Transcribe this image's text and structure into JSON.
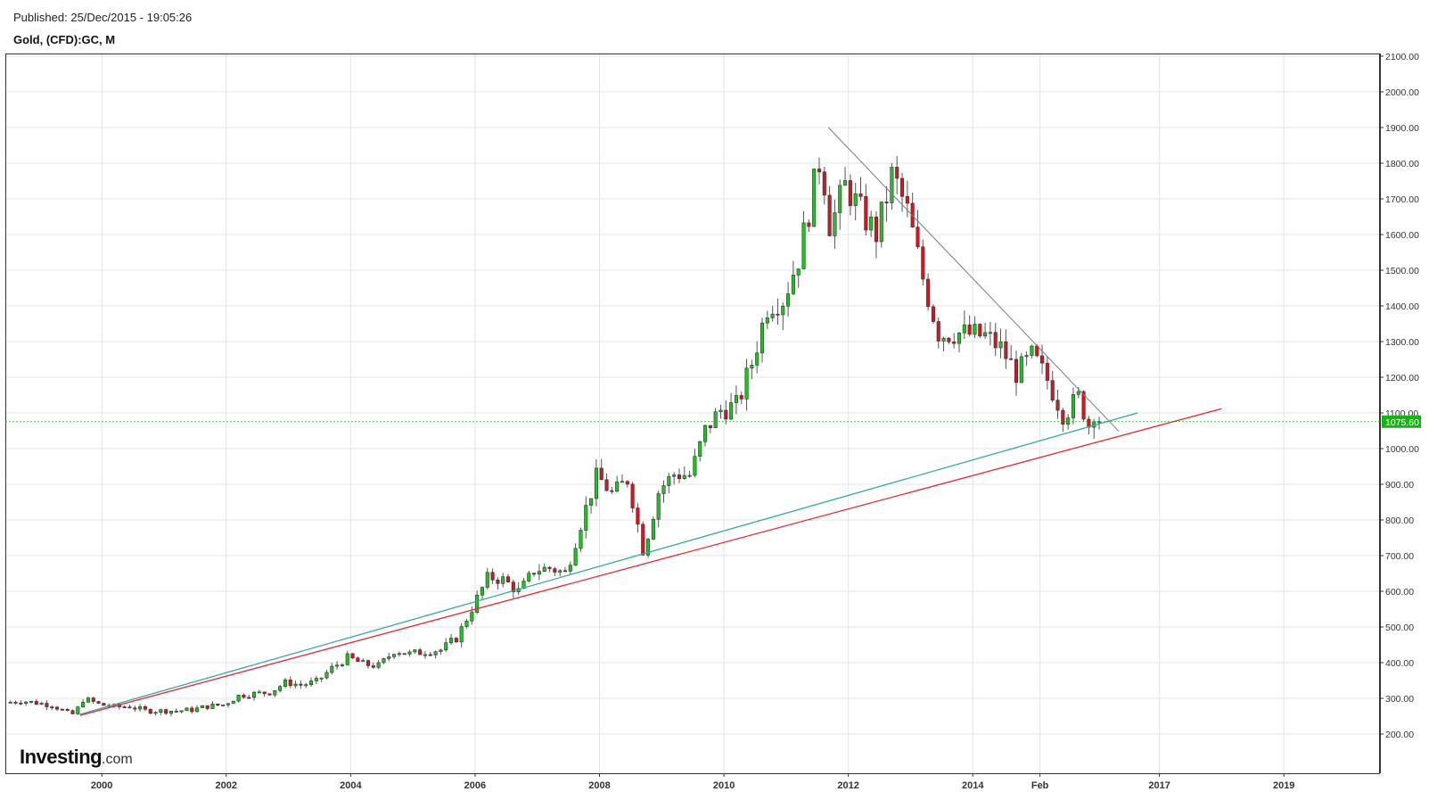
{
  "header": {
    "published_label": "Published:",
    "published_value": "25/Dec/2015 - 19:05:26",
    "symbol": "Gold, (CFD):GC, M"
  },
  "watermark": {
    "brand": "Investing",
    "suffix": ".com"
  },
  "colors": {
    "up": "#21c121",
    "down": "#d8141f",
    "teal_line": "#3aa7a0",
    "red_line": "#e8282f",
    "resistance_line": "#7a7a7a",
    "price_marker": "#13b513",
    "grid": "#e3e3e3"
  },
  "chart_data": {
    "type": "candlestick",
    "interval": "M",
    "y_axis": {
      "side": "right",
      "range": [
        170,
        2110
      ],
      "ticks": [
        "2100.00",
        "2000.00",
        "1900.00",
        "1800.00",
        "1700.00",
        "1600.00",
        "1500.00",
        "1400.00",
        "1300.00",
        "1200.00",
        "1100.00",
        "1000.00",
        "900.00",
        "800.00",
        "700.00",
        "600.00",
        "500.00",
        "400.00",
        "300.00",
        "200.00"
      ]
    },
    "x_axis": {
      "range_years": [
        1998.45,
        2020.0
      ],
      "ticks": [
        {
          "label": "2000",
          "t": 2000.0
        },
        {
          "label": "2002",
          "t": 2002.0
        },
        {
          "label": "2004",
          "t": 2004.0
        },
        {
          "label": "2006",
          "t": 2006.0
        },
        {
          "label": "2008",
          "t": 2008.0
        },
        {
          "label": "2010",
          "t": 2010.0
        },
        {
          "label": "2012",
          "t": 2012.0
        },
        {
          "label": "2014",
          "t": 2014.0
        },
        {
          "label": "Feb",
          "t": 2015.08
        },
        {
          "label": "2017",
          "t": 2017.0
        },
        {
          "label": "2019",
          "t": 2019.0
        }
      ]
    },
    "grid": true,
    "current_price": {
      "label": "1075.60",
      "value": 1075.6
    },
    "series_closes": [
      [
        1998.5,
        288
      ],
      [
        1998.75,
        293
      ],
      [
        1999.0,
        287
      ],
      [
        1999.25,
        281
      ],
      [
        1999.5,
        258
      ],
      [
        1999.6,
        255
      ],
      [
        1999.75,
        299
      ],
      [
        1999.9,
        290
      ],
      [
        2000.0,
        283
      ],
      [
        2000.25,
        276
      ],
      [
        2000.5,
        277
      ],
      [
        2000.75,
        265
      ],
      [
        2001.0,
        265
      ],
      [
        2001.25,
        265
      ],
      [
        2001.5,
        268
      ],
      [
        2001.75,
        278
      ],
      [
        2002.0,
        282
      ],
      [
        2002.25,
        308
      ],
      [
        2002.5,
        313
      ],
      [
        2002.75,
        317
      ],
      [
        2003.0,
        345
      ],
      [
        2003.25,
        337
      ],
      [
        2003.5,
        347
      ],
      [
        2003.75,
        386
      ],
      [
        2004.0,
        415
      ],
      [
        2004.25,
        395
      ],
      [
        2004.5,
        391
      ],
      [
        2004.75,
        435
      ],
      [
        2005.0,
        424
      ],
      [
        2005.25,
        432
      ],
      [
        2005.5,
        436
      ],
      [
        2005.75,
        470
      ],
      [
        2006.0,
        555
      ],
      [
        2006.25,
        640
      ],
      [
        2006.5,
        632
      ],
      [
        2006.75,
        598
      ],
      [
        2007.0,
        660
      ],
      [
        2007.25,
        665
      ],
      [
        2007.5,
        650
      ],
      [
        2007.75,
        795
      ],
      [
        2008.0,
        925
      ],
      [
        2008.25,
        872
      ],
      [
        2008.5,
        915
      ],
      [
        2008.75,
        710
      ],
      [
        2009.0,
        885
      ],
      [
        2009.25,
        930
      ],
      [
        2009.5,
        925
      ],
      [
        2009.75,
        1055
      ],
      [
        2010.0,
        1110
      ],
      [
        2010.25,
        1120
      ],
      [
        2010.5,
        1245
      ],
      [
        2010.75,
        1405
      ],
      [
        2011.0,
        1420
      ],
      [
        2011.25,
        1540
      ],
      [
        2011.6,
        1825
      ],
      [
        2011.75,
        1620
      ],
      [
        2012.0,
        1740
      ],
      [
        2012.25,
        1660
      ],
      [
        2012.5,
        1600
      ],
      [
        2012.75,
        1770
      ],
      [
        2013.0,
        1660
      ],
      [
        2013.25,
        1470
      ],
      [
        2013.5,
        1320
      ],
      [
        2013.75,
        1325
      ],
      [
        2014.0,
        1320
      ],
      [
        2014.25,
        1315
      ],
      [
        2014.5,
        1280
      ],
      [
        2014.75,
        1210
      ],
      [
        2015.0,
        1260
      ],
      [
        2015.25,
        1190
      ],
      [
        2015.5,
        1095
      ],
      [
        2015.75,
        1145
      ],
      [
        2015.9,
        1065
      ],
      [
        2015.98,
        1075.6
      ]
    ],
    "trendlines": [
      {
        "name": "teal support",
        "from": [
          1999.65,
          255
        ],
        "to": [
          2016.65,
          1100
        ]
      },
      {
        "name": "red support",
        "from": [
          1999.65,
          252
        ],
        "to": [
          2018.0,
          1112
        ]
      },
      {
        "name": "resistance",
        "from": [
          2011.68,
          1900
        ],
        "to": [
          2016.35,
          1048
        ]
      }
    ]
  }
}
